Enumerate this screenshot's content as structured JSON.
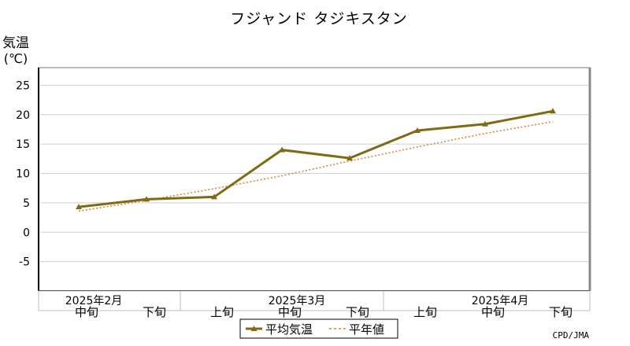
{
  "chart_data": {
    "type": "line",
    "title": "フジャンド タジキスタン",
    "ylabel_line1": "気温",
    "ylabel_line2": "(℃)",
    "ylim": [
      -10,
      28
    ],
    "yticks": [
      -5,
      0,
      5,
      10,
      15,
      20,
      25
    ],
    "grid": true,
    "categories": [
      "中旬",
      "下旬",
      "上旬",
      "中旬",
      "下旬",
      "上旬",
      "中旬",
      "下旬"
    ],
    "month_labels": [
      {
        "label": "2025年2月",
        "index": 0
      },
      {
        "label": "2025年3月",
        "index": 3
      },
      {
        "label": "2025年4月",
        "index": 6
      }
    ],
    "series": [
      {
        "name": "平均気温",
        "color": "#7f6a14",
        "style": "solid-marker",
        "values": [
          4.3,
          5.6,
          6.0,
          14.0,
          12.6,
          17.3,
          18.4,
          20.6
        ]
      },
      {
        "name": "平年値",
        "color": "#e07b28",
        "style": "dotted",
        "values": [
          3.6,
          5.4,
          7.4,
          9.6,
          12.1,
          14.5,
          16.8,
          18.8
        ]
      }
    ],
    "legend_position": "bottom-center",
    "credit": "CPD/JMA"
  }
}
